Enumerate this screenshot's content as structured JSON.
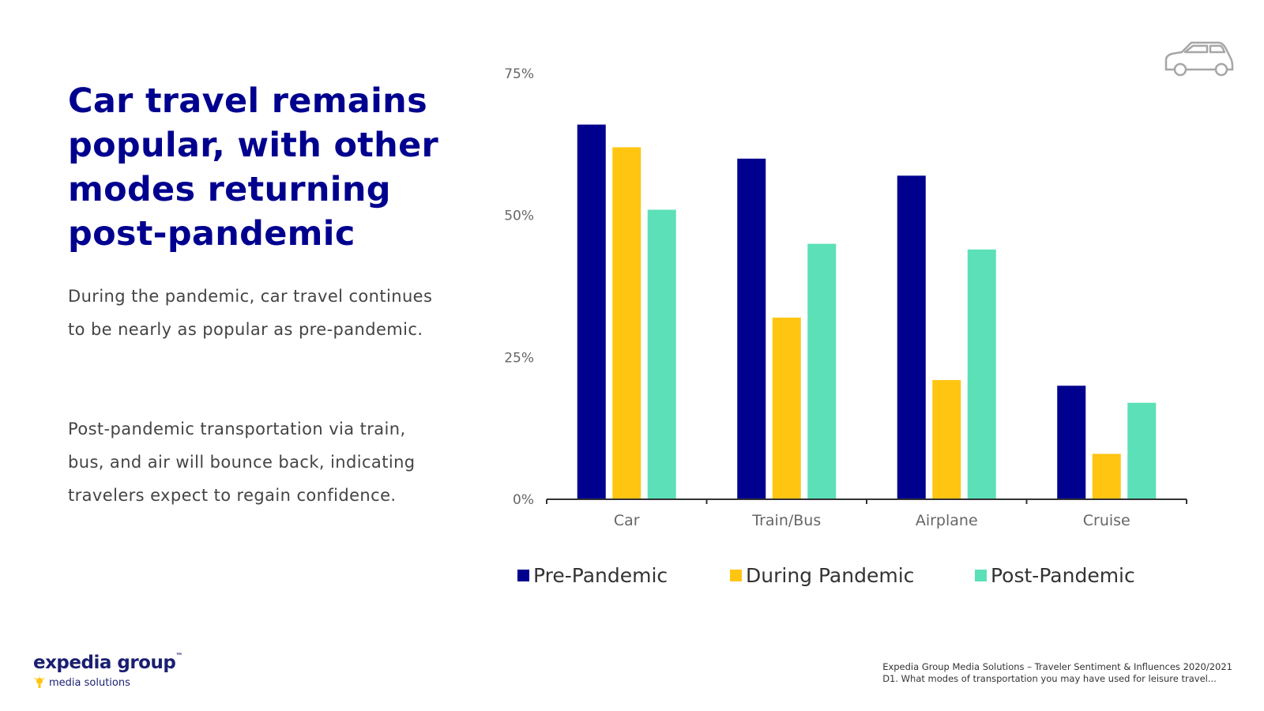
{
  "headline": "Car travel remains popular, with other modes returning post-pandemic",
  "paragraph1": "During the pandemic, car travel continues to be nearly as popular as pre-pandemic.",
  "paragraph2": "Post-pandemic transportation via train, bus, and air will bounce back, indicating travelers expect to regain confidence.",
  "logo": {
    "main": "expedia group",
    "sub": "media solutions"
  },
  "source": {
    "line1": "Expedia Group Media Solutions – Traveler Sentiment & Influences 2020/2021",
    "line2": "D1. What modes of transportation you may have used for leisure travel..."
  },
  "icons": {
    "car": "car-icon",
    "bulb": "lightbulb-icon"
  },
  "chart_data": {
    "type": "bar",
    "title": "",
    "xlabel": "",
    "ylabel": "",
    "categories": [
      "Car",
      "Train/Bus",
      "Airplane",
      "Cruise"
    ],
    "series": [
      {
        "name": "Pre-Pandemic",
        "color": "#00008f",
        "values": [
          66,
          60,
          57,
          20
        ]
      },
      {
        "name": "During Pandemic",
        "color": "#ffc511",
        "values": [
          62,
          32,
          21,
          8
        ]
      },
      {
        "name": "Post-Pandemic",
        "color": "#5ce0b8",
        "values": [
          51,
          45,
          44,
          17
        ]
      }
    ],
    "ylim": [
      0,
      75
    ],
    "yticks": [
      0,
      25,
      50,
      75
    ],
    "ytick_labels": [
      "0%",
      "25%",
      "50%",
      "75%"
    ],
    "grid": false,
    "legend": "bottom"
  }
}
